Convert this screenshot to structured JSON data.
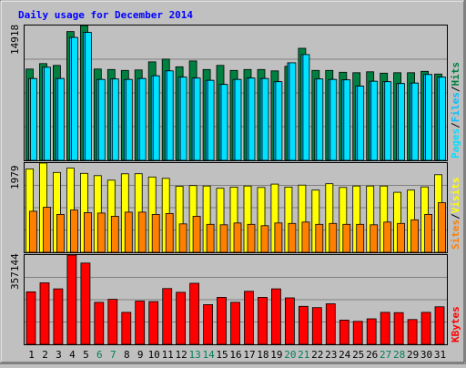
{
  "title": "Daily usage for December 2014",
  "colors": {
    "hits": "#008040",
    "files": "#00c0ff",
    "pages": "#00e0ff",
    "visits": "#ffff00",
    "sites": "#ff8000",
    "kbytes": "#ff0000",
    "plot_bg": "#c0c0c0",
    "gridline": "#808080",
    "title_text": "#0000ff",
    "weekday_text": "#000000",
    "weekend_text": "#00805c"
  },
  "labels": {
    "pages": "Pages",
    "files": "Files",
    "hits": "Hits",
    "visits": "Visits",
    "sites": "Sites",
    "kbytes": "KBytes",
    "sep": "/"
  },
  "chart_data": {
    "type": "bar",
    "x": [
      "1",
      "2",
      "3",
      "4",
      "5",
      "6",
      "7",
      "8",
      "9",
      "10",
      "11",
      "12",
      "13",
      "14",
      "15",
      "16",
      "17",
      "18",
      "19",
      "20",
      "21",
      "22",
      "23",
      "24",
      "25",
      "26",
      "27",
      "28",
      "29",
      "30",
      "31"
    ],
    "weekend_days": [
      "6",
      "7",
      "13",
      "14",
      "20",
      "21",
      "27",
      "28"
    ],
    "panels": [
      {
        "name": "hits-files-pages",
        "ymax_label": "14918",
        "ylim": [
          0,
          14918
        ],
        "series": [
          {
            "name": "Hits",
            "values": [
              10100,
              10700,
              10500,
              14250,
              14918,
              10100,
              10050,
              9950,
              10000,
              10900,
              11200,
              10350,
              11000,
              10050,
              10500,
              9950,
              10050,
              10050,
              9900,
              10400,
              12400,
              9950,
              9950,
              9750,
              9700,
              9800,
              9650,
              9700,
              9700,
              9850,
              9550
            ]
          },
          {
            "name": "Files",
            "values": [
              9050,
              10300,
              9050,
              13600,
              14150,
              8950,
              9000,
              8950,
              9050,
              9350,
              9900,
              9200,
              9100,
              8850,
              8400,
              8950,
              9100,
              9050,
              8700,
              10800,
              11700,
              9000,
              8950,
              8900,
              8200,
              8750,
              8700,
              8500,
              8550,
              9500,
              9200
            ]
          },
          {
            "name": "Pages",
            "values": [
              9050,
              10300,
              9050,
              13600,
              14150,
              8950,
              9000,
              8950,
              9050,
              9350,
              9900,
              9200,
              9100,
              8850,
              8400,
              8950,
              9100,
              9050,
              8700,
              10800,
              11700,
              9000,
              8950,
              8900,
              8200,
              8750,
              8700,
              8500,
              8550,
              9500,
              9200
            ]
          }
        ]
      },
      {
        "name": "visits-sites",
        "ymax_label": "1979",
        "ylim": [
          0,
          1979
        ],
        "series": [
          {
            "name": "Visits",
            "values": [
              1849,
              1979,
              1772,
              1867,
              1750,
              1700,
              1600,
              1740,
              1743,
              1670,
              1640,
              1465,
              1480,
              1470,
              1420,
              1445,
              1470,
              1438,
              1512,
              1445,
              1490,
              1380,
              1520,
              1438,
              1470,
              1470,
              1470,
              1330,
              1380,
              1450,
              1720
            ]
          },
          {
            "name": "Sites",
            "values": [
              910,
              1000,
              840,
              940,
              880,
              870,
              800,
              890,
              890,
              840,
              860,
              630,
              800,
              620,
              610,
              650,
              620,
              590,
              650,
              640,
              670,
              620,
              640,
              620,
              620,
              610,
              670,
              640,
              720,
              840,
              1100
            ]
          }
        ]
      },
      {
        "name": "kbytes",
        "ymax_label": "357144",
        "ylim": [
          0,
          357144
        ],
        "series": [
          {
            "name": "KBytes",
            "values": [
              210000,
              246000,
              222000,
              357144,
              325000,
              168000,
              180000,
              128000,
              173000,
              171000,
              223000,
              208000,
              244000,
              159000,
              188000,
              168000,
              212000,
              188000,
              222000,
              186000,
              152000,
              147000,
              162000,
              97000,
              92000,
              102000,
              128000,
              127000,
              99000,
              128000,
              150000
            ]
          }
        ]
      }
    ]
  }
}
